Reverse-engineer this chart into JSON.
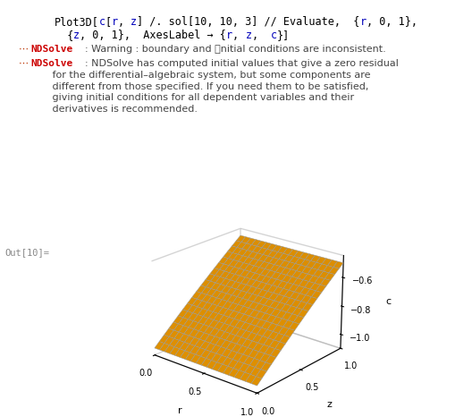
{
  "warn1_bullet": "⋯",
  "warn1_label": "NDSolve",
  "warn1_colon": ":",
  "warn1_msg": " Warning : boundary and ⏐nitial conditions are inconsistent.",
  "warn2_bullet": "⋯",
  "warn2_label": "NDSolve",
  "warn2_colon": ":",
  "warn2_msg": " NDSolve has computed initial values that give a zero residual",
  "warn2_line2": "   for the differential–algebraic system, but some components are",
  "warn2_line3": "   different from those specified. If you need them to be satisfied,",
  "warn2_line4": "   giving initial conditions for all dependent variables and their",
  "warn2_line5": "   derivatives is recommended.",
  "out_label": "Out[10]=",
  "xlabel": "r",
  "ylabel": "z",
  "zlabel": "c",
  "surface_color": "#FFA500",
  "edge_color": "#999999",
  "bg_color": "#ffffff",
  "elev": 22,
  "azim": -50,
  "title_fontsize": 8.5,
  "warn_fontsize": 8.0
}
